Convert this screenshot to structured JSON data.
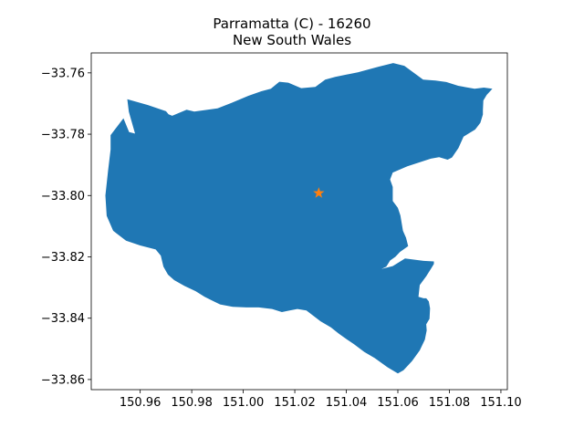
{
  "chart_data": {
    "type": "map",
    "title_line1": "Parramatta (C) - 16260",
    "title_line2": "New South Wales",
    "xlabel": "",
    "ylabel": "",
    "xlim": [
      150.941,
      151.1025
    ],
    "ylim": [
      -33.8633,
      -33.7535
    ],
    "x_ticks": [
      150.96,
      150.98,
      151.0,
      151.02,
      151.04,
      151.06,
      151.08,
      151.1
    ],
    "x_tick_labels": [
      "150.96",
      "150.98",
      "151.00",
      "151.02",
      "151.04",
      "151.06",
      "151.08",
      "151.10"
    ],
    "y_ticks": [
      -33.76,
      -33.78,
      -33.8,
      -33.82,
      -33.84,
      -33.86
    ],
    "y_tick_labels": [
      "−33.76",
      "−33.78",
      "−33.80",
      "−33.82",
      "−33.84",
      "−33.86"
    ],
    "grid": false,
    "region": {
      "name": "Parramatta (C)",
      "fill_color": "#1f77b4",
      "boundary": [
        [
          150.9485,
          -33.7803
        ],
        [
          150.9535,
          -33.7748
        ],
        [
          150.9557,
          -33.7793
        ],
        [
          150.958,
          -33.7798
        ],
        [
          150.9556,
          -33.7727
        ],
        [
          150.955,
          -33.7686
        ],
        [
          150.963,
          -33.7705
        ],
        [
          150.97,
          -33.7725
        ],
        [
          150.971,
          -33.7735
        ],
        [
          150.9724,
          -33.774
        ],
        [
          150.978,
          -33.772
        ],
        [
          150.981,
          -33.7726
        ],
        [
          150.99,
          -33.7716
        ],
        [
          150.9963,
          -33.7695
        ],
        [
          151.002,
          -33.7675
        ],
        [
          151.007,
          -33.766
        ],
        [
          151.0107,
          -33.7652
        ],
        [
          151.014,
          -33.7629
        ],
        [
          151.0175,
          -33.7632
        ],
        [
          151.0225,
          -33.765
        ],
        [
          151.028,
          -33.7646
        ],
        [
          151.0318,
          -33.7622
        ],
        [
          151.0357,
          -33.7613
        ],
        [
          151.0445,
          -33.7598
        ],
        [
          151.0525,
          -33.758
        ],
        [
          151.0582,
          -33.7568
        ],
        [
          151.0625,
          -33.7577
        ],
        [
          151.0698,
          -33.7622
        ],
        [
          151.0746,
          -33.7625
        ],
        [
          151.0788,
          -33.763
        ],
        [
          151.0834,
          -33.7642
        ],
        [
          151.0898,
          -33.7652
        ],
        [
          151.0934,
          -33.7648
        ],
        [
          151.0967,
          -33.7652
        ],
        [
          151.0945,
          -33.7672
        ],
        [
          151.0932,
          -33.769
        ],
        [
          151.093,
          -33.7722
        ],
        [
          151.093,
          -33.7736
        ],
        [
          151.092,
          -33.7763
        ],
        [
          151.09,
          -33.7785
        ],
        [
          151.088,
          -33.7795
        ],
        [
          151.0855,
          -33.7808
        ],
        [
          151.0835,
          -33.7845
        ],
        [
          151.081,
          -33.7876
        ],
        [
          151.0793,
          -33.7883
        ],
        [
          151.076,
          -33.7875
        ],
        [
          151.0728,
          -33.788
        ],
        [
          151.0637,
          -33.7905
        ],
        [
          151.058,
          -33.7925
        ],
        [
          151.057,
          -33.7948
        ],
        [
          151.058,
          -33.7972
        ],
        [
          151.058,
          -33.8018
        ],
        [
          151.06,
          -33.804
        ],
        [
          151.061,
          -33.8065
        ],
        [
          151.062,
          -33.8115
        ],
        [
          151.0632,
          -33.8138
        ],
        [
          151.064,
          -33.8165
        ],
        [
          151.0608,
          -33.8184
        ],
        [
          151.059,
          -33.82
        ],
        [
          151.057,
          -33.8212
        ],
        [
          151.0555,
          -33.8232
        ],
        [
          151.0515,
          -33.8248
        ],
        [
          151.048,
          -33.825
        ],
        [
          151.042,
          -33.8243
        ],
        [
          151.037,
          -33.824
        ],
        [
          151.043,
          -33.8238
        ],
        [
          151.047,
          -33.824
        ],
        [
          151.0535,
          -33.824
        ],
        [
          151.058,
          -33.823
        ],
        [
          151.0628,
          -33.8205
        ],
        [
          151.07,
          -33.8213
        ],
        [
          151.074,
          -33.8215
        ],
        [
          151.074,
          -33.8223
        ],
        [
          151.073,
          -33.8237
        ],
        [
          151.071,
          -33.8263
        ],
        [
          151.0685,
          -33.8292
        ],
        [
          151.068,
          -33.833
        ],
        [
          151.07,
          -33.8335
        ],
        [
          151.071,
          -33.8335
        ],
        [
          151.072,
          -33.8345
        ],
        [
          151.0725,
          -33.8368
        ],
        [
          151.0723,
          -33.8402
        ],
        [
          151.071,
          -33.842
        ],
        [
          151.0712,
          -33.844
        ],
        [
          151.0705,
          -33.847
        ],
        [
          151.0685,
          -33.8505
        ],
        [
          151.0655,
          -33.854
        ],
        [
          151.0622,
          -33.857
        ],
        [
          151.06,
          -33.858
        ],
        [
          151.056,
          -33.856
        ],
        [
          151.051,
          -33.853
        ],
        [
          151.047,
          -33.851
        ],
        [
          151.043,
          -33.8485
        ],
        [
          151.04,
          -33.8468
        ],
        [
          151.037,
          -33.845
        ],
        [
          151.034,
          -33.843
        ],
        [
          151.03,
          -33.841
        ],
        [
          151.0245,
          -33.8375
        ],
        [
          151.021,
          -33.837
        ],
        [
          151.018,
          -33.8375
        ],
        [
          151.015,
          -33.838
        ],
        [
          151.0112,
          -33.837
        ],
        [
          151.006,
          -33.8365
        ],
        [
          151.0012,
          -33.8365
        ],
        [
          150.996,
          -33.8363
        ],
        [
          150.991,
          -33.8355
        ],
        [
          150.988,
          -33.8343
        ],
        [
          150.985,
          -33.833
        ],
        [
          150.9815,
          -33.8312
        ],
        [
          150.9772,
          -33.8295
        ],
        [
          150.9732,
          -33.8276
        ],
        [
          150.9708,
          -33.8258
        ],
        [
          150.969,
          -33.8232
        ],
        [
          150.968,
          -33.8196
        ],
        [
          150.966,
          -33.8176
        ],
        [
          150.96,
          -33.8163
        ],
        [
          150.9545,
          -33.8147
        ],
        [
          150.9495,
          -33.8115
        ],
        [
          150.947,
          -33.8066
        ],
        [
          150.9465,
          -33.8
        ],
        [
          150.9475,
          -33.792
        ],
        [
          150.9485,
          -33.785
        ]
      ]
    },
    "marker": {
      "label": "centroid",
      "x": 151.0293,
      "y": -33.7992,
      "symbol": "star",
      "color": "#ff7f0e"
    }
  }
}
